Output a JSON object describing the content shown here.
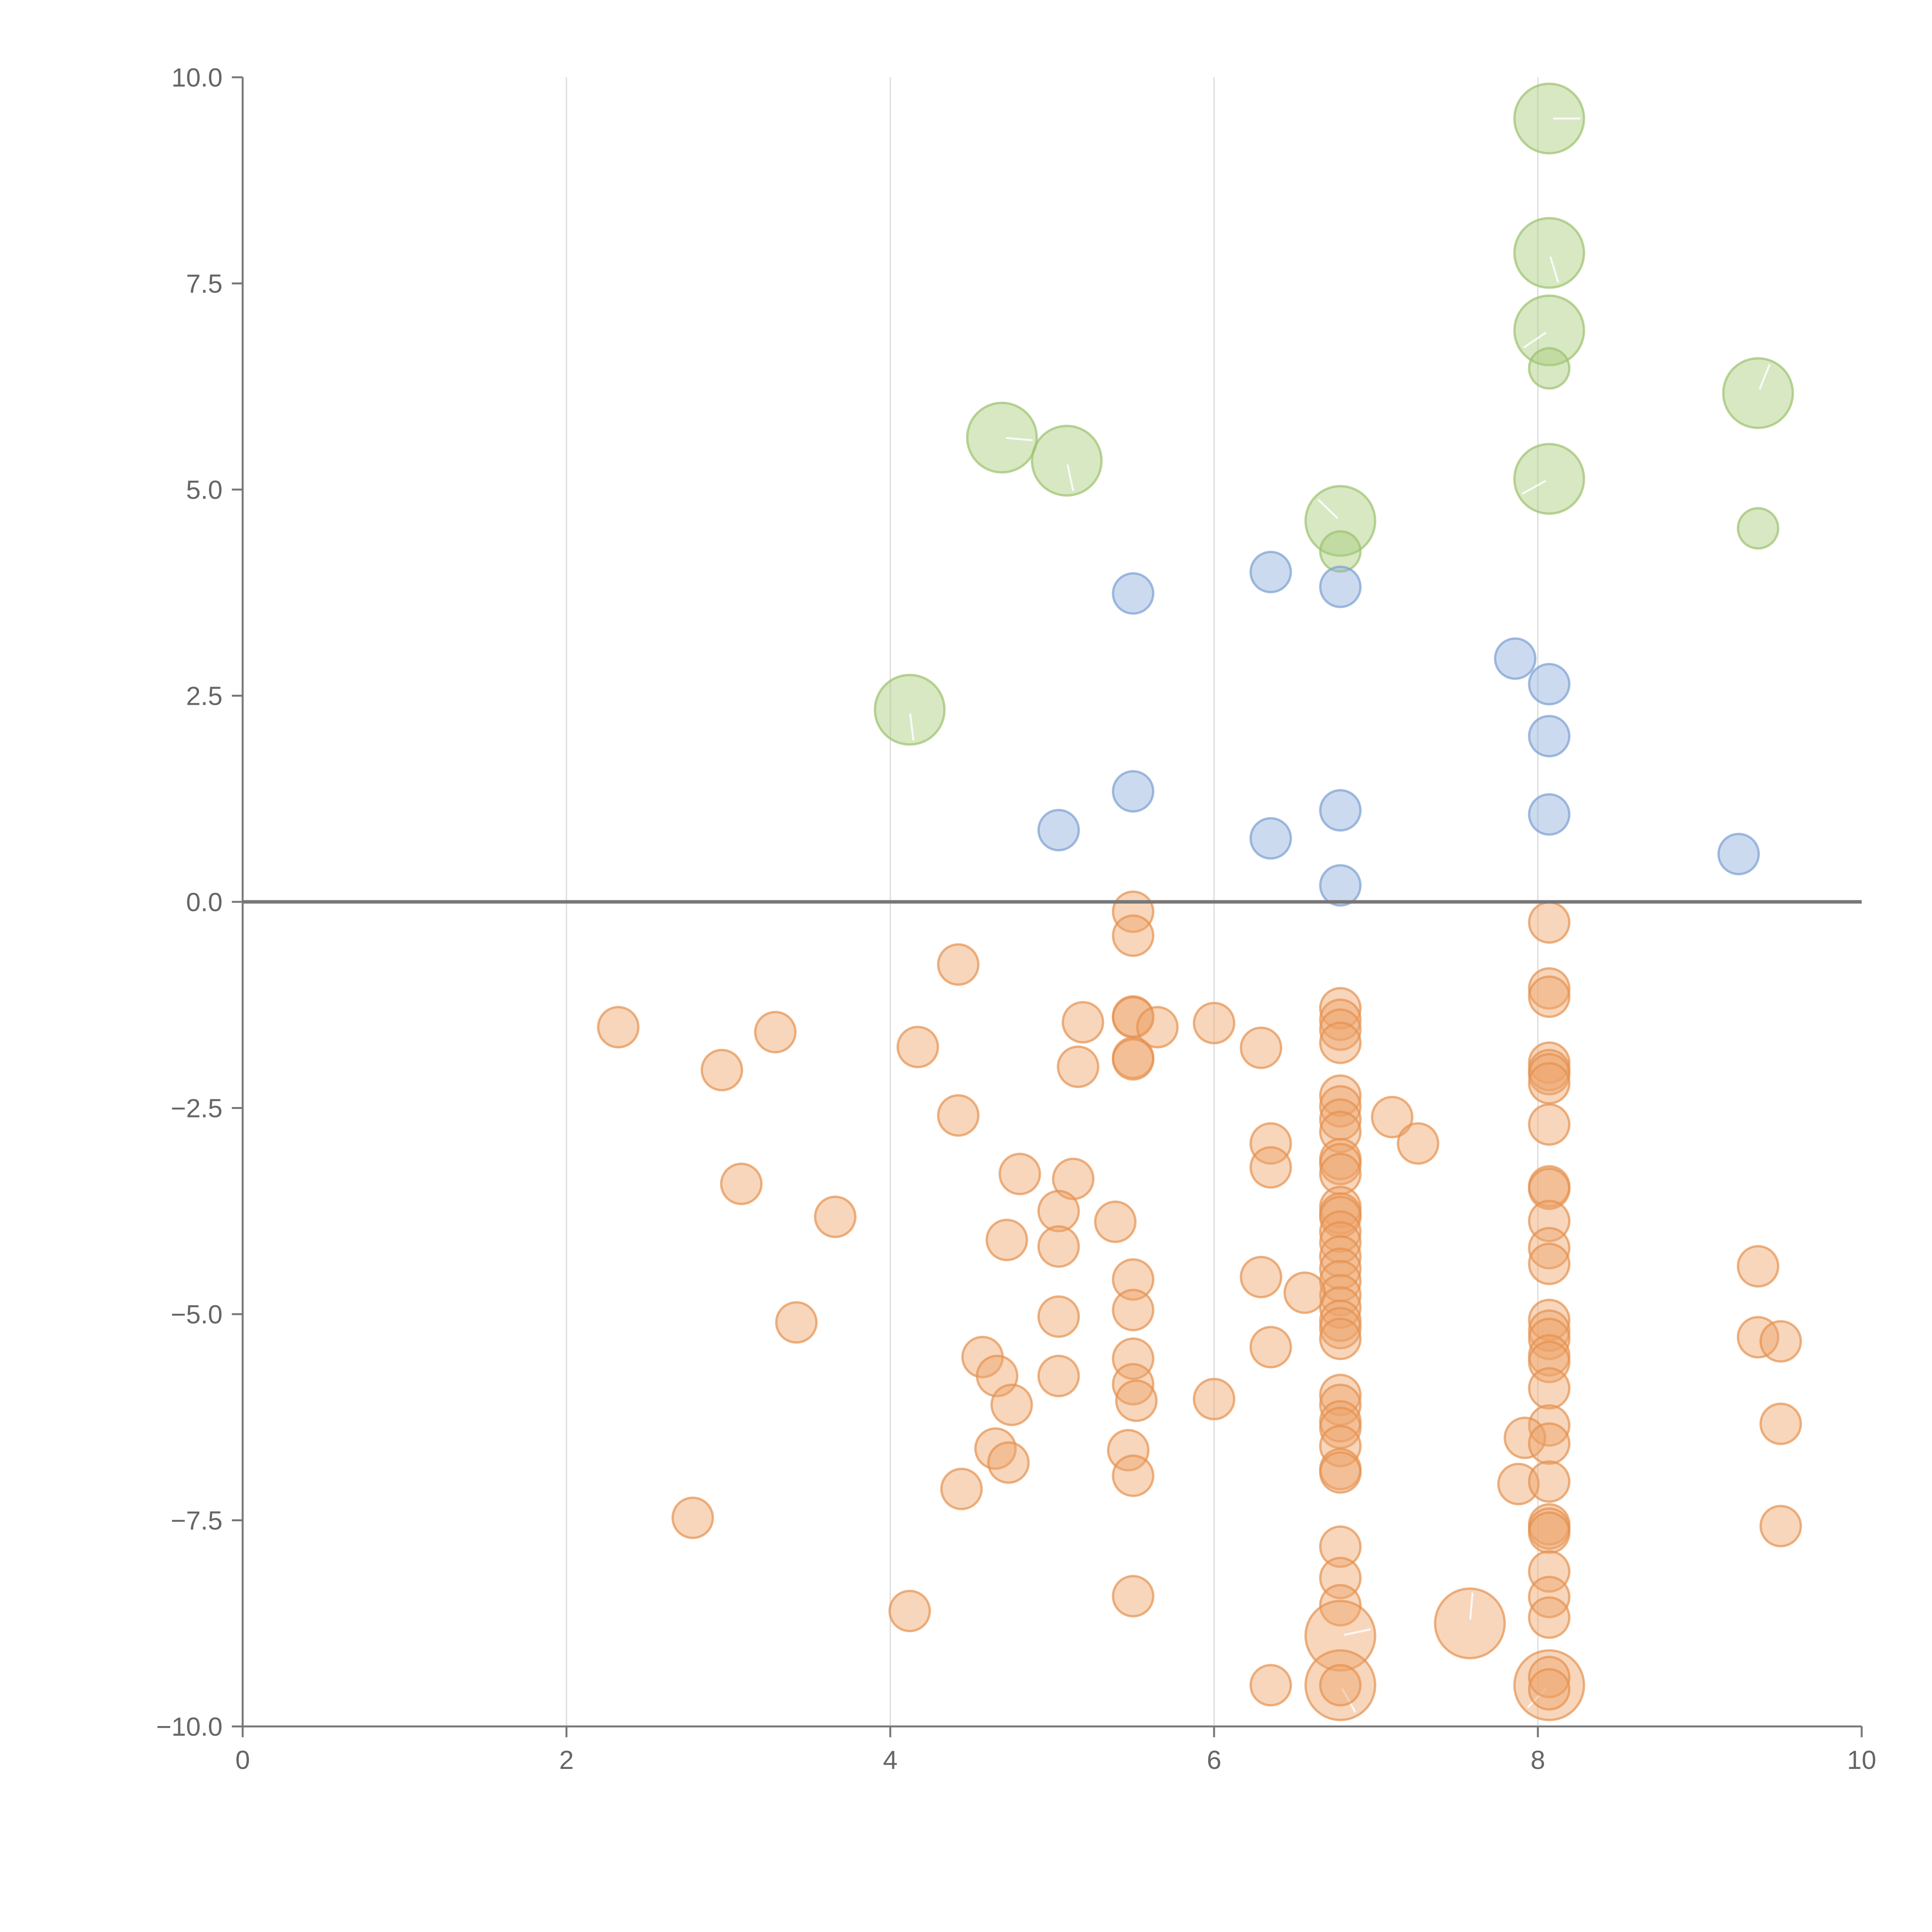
{
  "chart_data": {
    "type": "scatter",
    "title": "",
    "xlabel": "",
    "ylabel": "",
    "xlim": [
      0,
      10
    ],
    "ylim": [
      -10,
      10
    ],
    "x_ticks": [
      0,
      2,
      4,
      6,
      8,
      10
    ],
    "y_ticks": [
      -10.0,
      -7.5,
      -5.0,
      -2.5,
      0.0,
      2.5,
      5.0,
      7.5,
      10.0
    ],
    "x_tick_labels": [
      "0",
      "2",
      "4",
      "6",
      "8",
      "10"
    ],
    "y_tick_labels": [
      "−10.0",
      "−7.5",
      "−5.0",
      "−2.5",
      "0.0",
      "2.5",
      "5.0",
      "7.5",
      "10.0"
    ],
    "grid": "vertical",
    "zero_line": true,
    "legend": "none",
    "series": [
      {
        "color": "#a6cb7a",
        "stroke": "#9cc26e",
        "points": [
          [
            8.07,
            9.5,
            2
          ],
          [
            8.07,
            7.87,
            2
          ],
          [
            8.07,
            6.93,
            2
          ],
          [
            8.07,
            6.47,
            1
          ],
          [
            9.36,
            6.17,
            2
          ],
          [
            4.69,
            5.63,
            2
          ],
          [
            5.09,
            5.35,
            2
          ],
          [
            8.07,
            5.13,
            2
          ],
          [
            6.78,
            4.62,
            2
          ],
          [
            6.78,
            4.25,
            1
          ],
          [
            9.36,
            4.53,
            1
          ],
          [
            4.12,
            2.33,
            2
          ]
        ]
      },
      {
        "color": "#8faedb",
        "stroke": "#7a9fd2",
        "points": [
          [
            6.35,
            4.0,
            1
          ],
          [
            6.78,
            3.82,
            1
          ],
          [
            5.5,
            3.74,
            1
          ],
          [
            7.86,
            2.95,
            1
          ],
          [
            8.07,
            2.64,
            1
          ],
          [
            8.07,
            2.01,
            1
          ],
          [
            5.5,
            1.34,
            1
          ],
          [
            6.78,
            1.11,
            1
          ],
          [
            8.07,
            1.06,
            1
          ],
          [
            5.04,
            0.87,
            1
          ],
          [
            6.35,
            0.77,
            1
          ],
          [
            9.24,
            0.58,
            1
          ],
          [
            6.78,
            0.2,
            1
          ]
        ]
      },
      {
        "color": "#eda46a",
        "stroke": "#e5914f",
        "points": [
          [
            5.5,
            -0.12,
            1
          ],
          [
            8.07,
            -0.25,
            1
          ],
          [
            5.5,
            -0.41,
            1
          ],
          [
            4.42,
            -0.76,
            1
          ],
          [
            8.07,
            -1.05,
            1
          ],
          [
            8.07,
            -1.15,
            1
          ],
          [
            6.78,
            -1.29,
            1
          ],
          [
            6.78,
            -1.43,
            1
          ],
          [
            6.78,
            -1.55,
            1
          ],
          [
            6.78,
            -1.71,
            1
          ],
          [
            5.5,
            -1.39,
            1
          ],
          [
            5.5,
            -1.4,
            1
          ],
          [
            5.19,
            -1.46,
            1
          ],
          [
            6.0,
            -1.47,
            1
          ],
          [
            2.32,
            -1.52,
            1
          ],
          [
            5.65,
            -1.52,
            1
          ],
          [
            3.29,
            -1.58,
            1
          ],
          [
            4.17,
            -1.76,
            1
          ],
          [
            6.29,
            -1.77,
            1
          ],
          [
            5.5,
            -1.89,
            1
          ],
          [
            5.5,
            -1.91,
            1
          ],
          [
            8.07,
            -1.95,
            1
          ],
          [
            8.07,
            -2.04,
            1
          ],
          [
            8.07,
            -2.09,
            1
          ],
          [
            8.07,
            -2.2,
            1
          ],
          [
            5.16,
            -2.0,
            1
          ],
          [
            2.96,
            -2.04,
            1
          ],
          [
            6.78,
            -2.35,
            1
          ],
          [
            6.78,
            -2.48,
            1
          ],
          [
            4.42,
            -2.59,
            1
          ],
          [
            7.1,
            -2.61,
            1
          ],
          [
            6.78,
            -2.64,
            1
          ],
          [
            6.78,
            -2.79,
            1
          ],
          [
            8.07,
            -2.7,
            1
          ],
          [
            6.35,
            -2.93,
            1
          ],
          [
            7.26,
            -2.93,
            1
          ],
          [
            6.78,
            -3.12,
            1
          ],
          [
            6.78,
            -3.18,
            1
          ],
          [
            6.78,
            -3.3,
            1
          ],
          [
            6.35,
            -3.22,
            1
          ],
          [
            4.8,
            -3.3,
            1
          ],
          [
            5.13,
            -3.36,
            1
          ],
          [
            3.08,
            -3.42,
            1
          ],
          [
            8.07,
            -3.45,
            1
          ],
          [
            8.07,
            -3.48,
            1
          ],
          [
            6.78,
            -3.7,
            1
          ],
          [
            6.78,
            -3.78,
            1
          ],
          [
            6.78,
            -3.82,
            1
          ],
          [
            5.04,
            -3.75,
            1
          ],
          [
            3.66,
            -3.82,
            1
          ],
          [
            8.07,
            -3.87,
            1
          ],
          [
            5.39,
            -3.88,
            1
          ],
          [
            6.78,
            -4.0,
            1
          ],
          [
            4.72,
            -4.1,
            1
          ],
          [
            6.78,
            -4.13,
            1
          ],
          [
            5.04,
            -4.18,
            1
          ],
          [
            8.07,
            -4.2,
            1
          ],
          [
            6.78,
            -4.3,
            1
          ],
          [
            6.78,
            -4.45,
            1
          ],
          [
            8.07,
            -4.39,
            1
          ],
          [
            9.36,
            -4.42,
            1
          ],
          [
            6.78,
            -4.6,
            1
          ],
          [
            5.5,
            -4.58,
            1
          ],
          [
            6.29,
            -4.55,
            1
          ],
          [
            6.78,
            -4.77,
            1
          ],
          [
            6.56,
            -4.74,
            1
          ],
          [
            6.78,
            -4.92,
            1
          ],
          [
            5.5,
            -4.95,
            1
          ],
          [
            5.04,
            -5.03,
            1
          ],
          [
            6.78,
            -5.08,
            1
          ],
          [
            6.78,
            -5.17,
            1
          ],
          [
            6.78,
            -5.3,
            1
          ],
          [
            8.07,
            -5.07,
            1
          ],
          [
            8.07,
            -5.2,
            1
          ],
          [
            8.07,
            -5.3,
            1
          ],
          [
            3.42,
            -5.1,
            1
          ],
          [
            9.36,
            -5.28,
            1
          ],
          [
            9.5,
            -5.33,
            1
          ],
          [
            6.35,
            -5.4,
            1
          ],
          [
            8.07,
            -5.5,
            1
          ],
          [
            8.07,
            -5.58,
            1
          ],
          [
            4.57,
            -5.52,
            1
          ],
          [
            5.5,
            -5.54,
            1
          ],
          [
            4.66,
            -5.75,
            1
          ],
          [
            5.04,
            -5.75,
            1
          ],
          [
            5.5,
            -5.85,
            1
          ],
          [
            8.07,
            -5.9,
            1
          ],
          [
            6.0,
            -6.03,
            1
          ],
          [
            5.52,
            -6.05,
            1
          ],
          [
            4.75,
            -6.1,
            1
          ],
          [
            6.78,
            -5.98,
            1
          ],
          [
            6.78,
            -6.1,
            1
          ],
          [
            6.78,
            -6.3,
            1
          ],
          [
            6.78,
            -6.38,
            1
          ],
          [
            8.07,
            -6.35,
            1
          ],
          [
            9.5,
            -6.33,
            1
          ],
          [
            7.92,
            -6.5,
            1
          ],
          [
            8.07,
            -6.57,
            1
          ],
          [
            6.78,
            -6.6,
            1
          ],
          [
            4.65,
            -6.63,
            1
          ],
          [
            5.47,
            -6.65,
            1
          ],
          [
            4.73,
            -6.8,
            1
          ],
          [
            6.78,
            -6.88,
            1
          ],
          [
            6.78,
            -6.92,
            1
          ],
          [
            5.5,
            -6.96,
            1
          ],
          [
            7.88,
            -7.06,
            1
          ],
          [
            8.07,
            -7.03,
            1
          ],
          [
            4.44,
            -7.12,
            1
          ],
          [
            2.78,
            -7.47,
            1
          ],
          [
            8.07,
            -7.55,
            1
          ],
          [
            8.07,
            -7.6,
            1
          ],
          [
            8.07,
            -7.65,
            1
          ],
          [
            9.5,
            -7.57,
            1
          ],
          [
            6.78,
            -7.82,
            1
          ],
          [
            8.07,
            -8.12,
            1
          ],
          [
            6.78,
            -8.2,
            1
          ],
          [
            8.07,
            -8.43,
            1
          ],
          [
            5.5,
            -8.42,
            1
          ],
          [
            6.78,
            -8.53,
            1
          ],
          [
            4.12,
            -8.6,
            1
          ],
          [
            8.07,
            -8.68,
            1
          ],
          [
            7.58,
            -8.75,
            2
          ],
          [
            6.78,
            -8.9,
            2
          ],
          [
            6.78,
            -9.5,
            2
          ],
          [
            8.07,
            -9.5,
            2
          ],
          [
            6.78,
            -9.5,
            1
          ],
          [
            8.07,
            -9.4,
            1
          ],
          [
            8.07,
            -9.55,
            1
          ],
          [
            6.35,
            -9.5,
            1
          ]
        ]
      }
    ]
  }
}
